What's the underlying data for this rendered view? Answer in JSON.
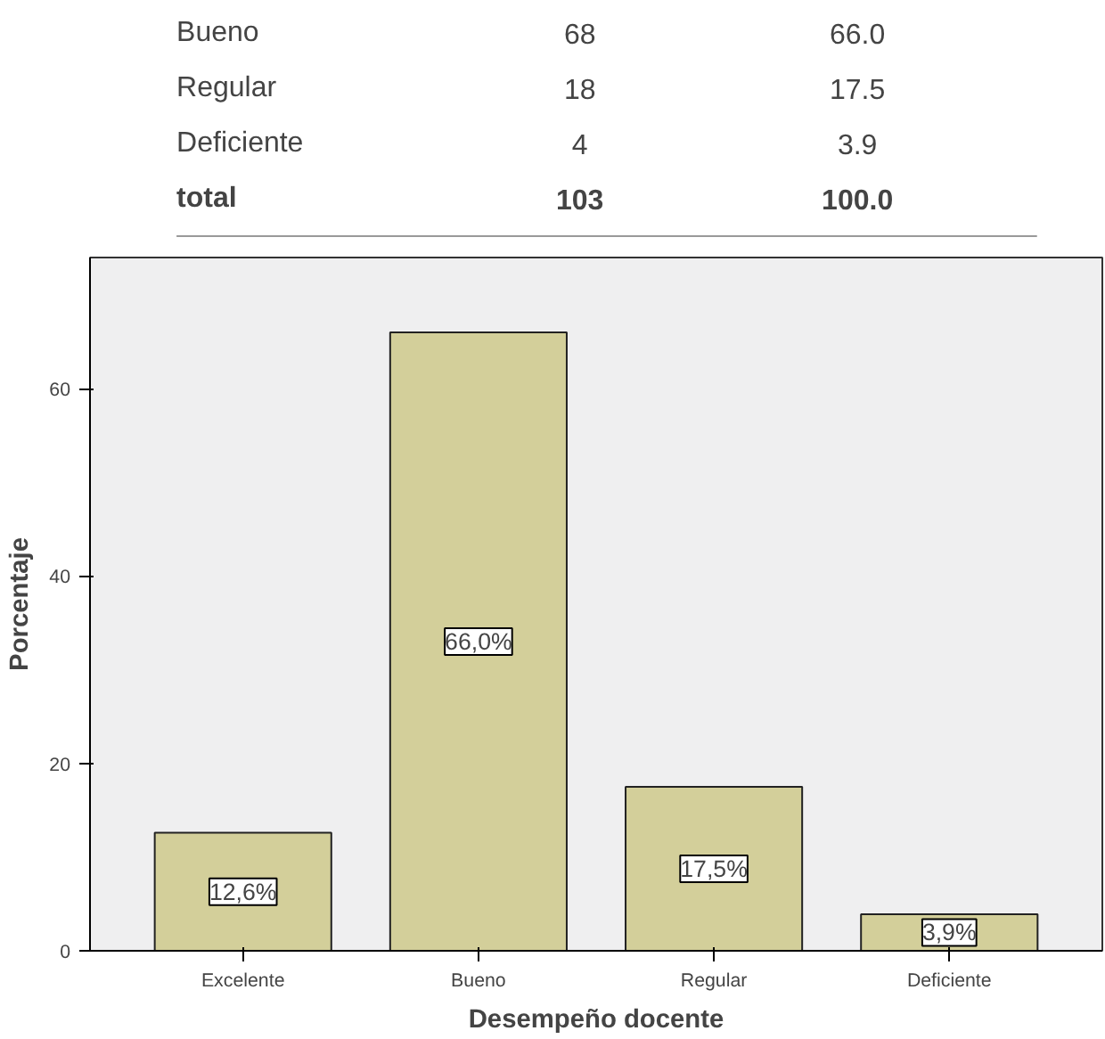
{
  "chart_data": {
    "type": "bar",
    "xlabel": "Desempeño docente",
    "ylabel": "Porcentaje",
    "categories": [
      "Excelente",
      "Bueno",
      "Regular",
      "Deficiente"
    ],
    "values": [
      12.6,
      66.0,
      17.5,
      3.9
    ],
    "value_labels": [
      "12,6%",
      "66,0%",
      "17,5%",
      "3,9%"
    ],
    "color": "#d3cf9a",
    "ylim": [
      0,
      74
    ],
    "yticks": [
      0,
      20,
      40,
      60
    ],
    "grid": false,
    "annotations": [
      "Bueno",
      "68",
      "66.0",
      "Regular",
      "18",
      "17.5",
      "Deficiente",
      "4",
      "3.9",
      "total",
      "103",
      "100.0"
    ]
  }
}
